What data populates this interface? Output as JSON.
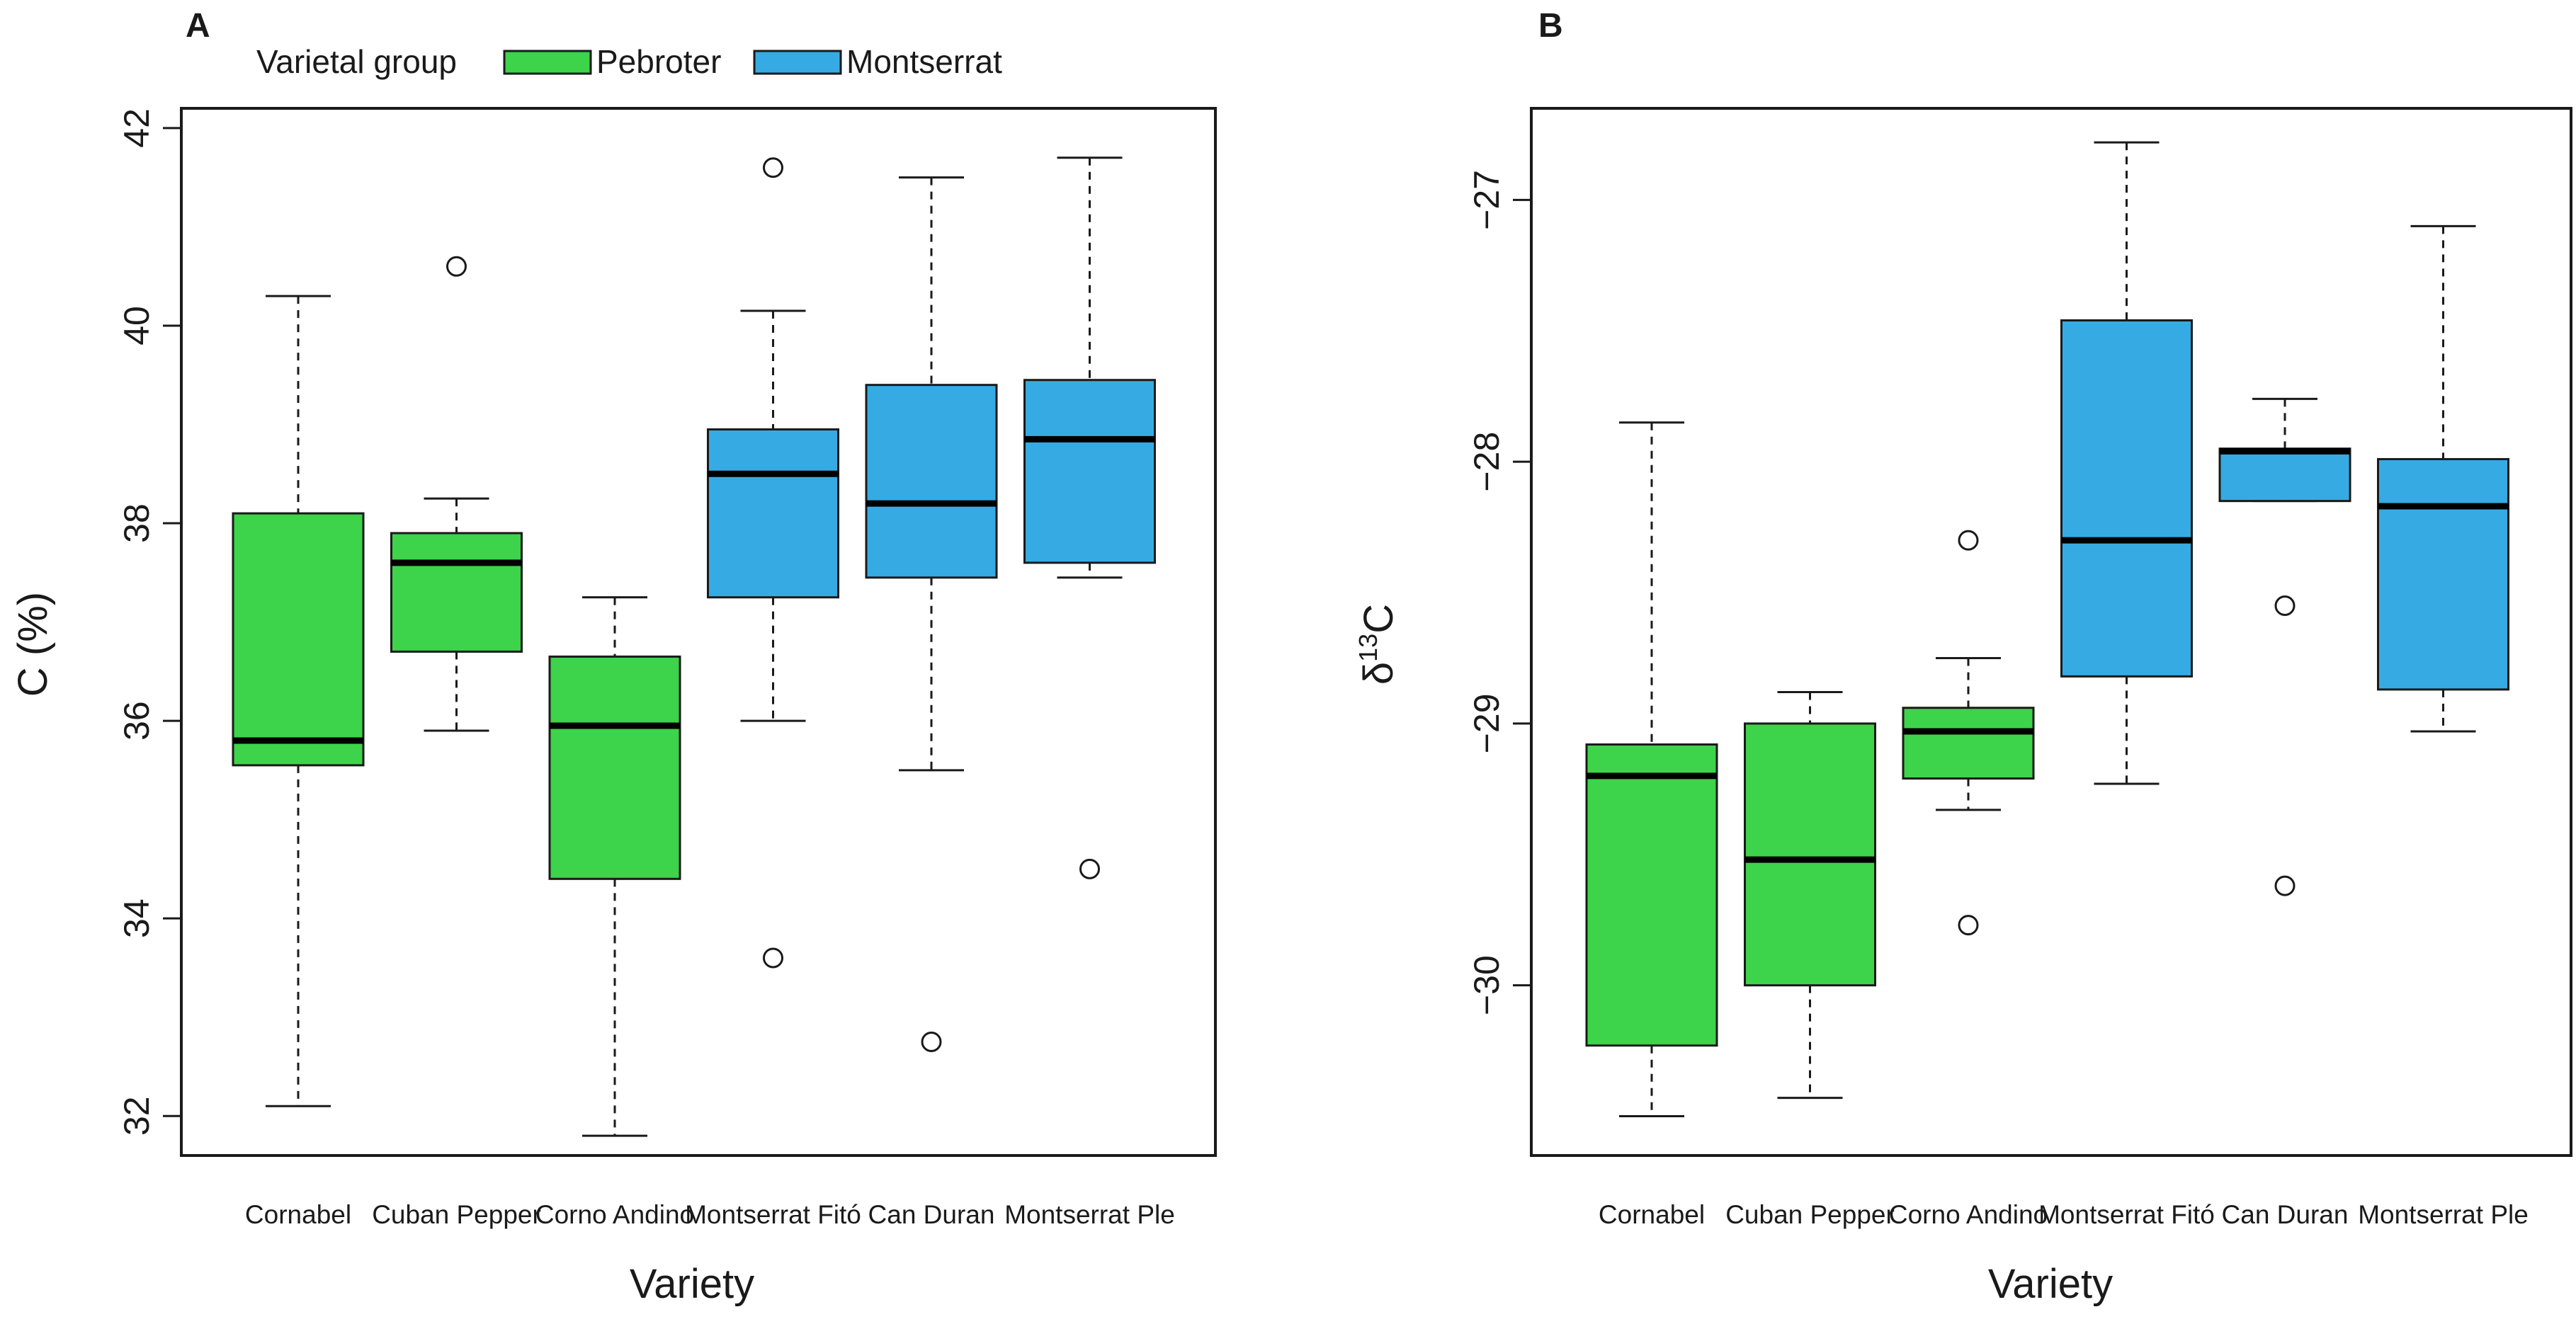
{
  "figure": {
    "legend": {
      "title": "Varietal group",
      "entries": [
        {
          "label": "Pebroter",
          "color": "#3dd34a"
        },
        {
          "label": "Montserrat",
          "color": "#36abe3"
        }
      ]
    }
  },
  "chart_data": [
    {
      "type": "box",
      "panel_label": "A",
      "xlabel": "Variety",
      "ylabel": "C (%)",
      "ylim": [
        31.6,
        42.2
      ],
      "yticks": [
        32,
        34,
        36,
        38,
        40,
        42
      ],
      "categories": [
        "Cornabel",
        "Cuban Pepper",
        "Corno Andino",
        "Montserrat Fitó",
        "Can Duran",
        "Montserrat Ple"
      ],
      "groups": [
        "Pebroter",
        "Pebroter",
        "Pebroter",
        "Montserrat",
        "Montserrat",
        "Montserrat"
      ],
      "boxes": [
        {
          "whisker_low": 32.1,
          "q1": 35.55,
          "median": 35.8,
          "q3": 38.1,
          "whisker_high": 40.3,
          "outliers": []
        },
        {
          "whisker_low": 35.9,
          "q1": 36.7,
          "median": 37.6,
          "q3": 37.9,
          "whisker_high": 38.25,
          "outliers": [
            40.6
          ]
        },
        {
          "whisker_low": 31.8,
          "q1": 34.4,
          "median": 35.95,
          "q3": 36.65,
          "whisker_high": 37.25,
          "outliers": []
        },
        {
          "whisker_low": 36.0,
          "q1": 37.25,
          "median": 38.5,
          "q3": 38.95,
          "whisker_high": 40.15,
          "outliers": [
            41.6,
            33.6
          ]
        },
        {
          "whisker_low": 35.5,
          "q1": 37.45,
          "median": 38.2,
          "q3": 39.4,
          "whisker_high": 41.5,
          "outliers": [
            32.75
          ]
        },
        {
          "whisker_low": 37.45,
          "q1": 37.6,
          "median": 38.85,
          "q3": 39.45,
          "whisker_high": 41.7,
          "outliers": [
            34.5
          ]
        }
      ]
    },
    {
      "type": "box",
      "panel_label": "B",
      "xlabel": "Variety",
      "ylabel_base": "δ",
      "ylabel_sup": "13",
      "ylabel_tail": "C",
      "ylim": [
        -30.65,
        -26.65
      ],
      "yticks": [
        -30,
        -29,
        -28,
        -27
      ],
      "ytick_labels": [
        "−30",
        "−29",
        "−28",
        "−27"
      ],
      "categories": [
        "Cornabel",
        "Cuban Pepper",
        "Corno Andino",
        "Montserrat Fitó",
        "Can Duran",
        "Montserrat Ple"
      ],
      "groups": [
        "Pebroter",
        "Pebroter",
        "Pebroter",
        "Montserrat",
        "Montserrat",
        "Montserrat"
      ],
      "boxes": [
        {
          "whisker_low": -30.5,
          "q1": -30.23,
          "median": -29.2,
          "q3": -29.08,
          "whisker_high": -27.85,
          "outliers": []
        },
        {
          "whisker_low": -30.43,
          "q1": -30.0,
          "median": -29.52,
          "q3": -29.0,
          "whisker_high": -28.88,
          "outliers": []
        },
        {
          "whisker_low": -29.33,
          "q1": -29.21,
          "median": -29.03,
          "q3": -28.94,
          "whisker_high": -28.75,
          "outliers": [
            -28.3,
            -29.77
          ]
        },
        {
          "whisker_low": -29.23,
          "q1": -28.82,
          "median": -28.3,
          "q3": -27.46,
          "whisker_high": -26.78,
          "outliers": []
        },
        {
          "whisker_low": -28.15,
          "q1": -28.15,
          "median": -27.96,
          "q3": -27.95,
          "whisker_high": -27.76,
          "outliers": [
            -28.55,
            -29.62
          ]
        },
        {
          "whisker_low": -29.03,
          "q1": -28.87,
          "median": -28.17,
          "q3": -27.99,
          "whisker_high": -27.1,
          "outliers": []
        }
      ]
    }
  ]
}
